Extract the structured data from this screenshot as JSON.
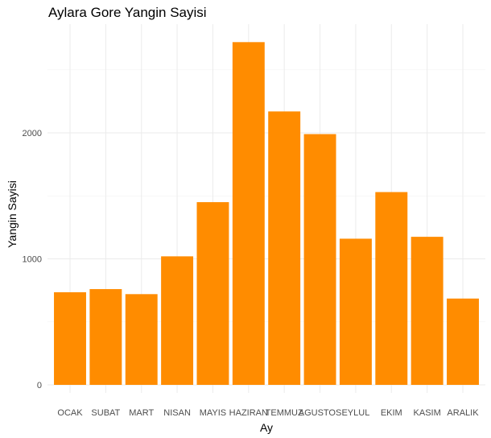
{
  "chart_data": {
    "type": "bar",
    "title": "Aylara Gore Yangin Sayisi",
    "xlabel": "Ay",
    "ylabel": "Yangin Sayisi",
    "categories": [
      "OCAK",
      "SUBAT",
      "MART",
      "NISAN",
      "MAYIS",
      "HAZIRAN",
      "TEMMUZ",
      "AGUSTOS",
      "EYLUL",
      "EKIM",
      "KASIM",
      "ARALIK"
    ],
    "values": [
      735,
      760,
      720,
      1020,
      1450,
      2720,
      2170,
      1990,
      1160,
      1530,
      1175,
      685
    ],
    "ylim": [
      0,
      2780
    ],
    "yticks": [
      0,
      1000,
      2000
    ],
    "bar_color": "#FF8C00",
    "grid": true,
    "legend": "none"
  }
}
